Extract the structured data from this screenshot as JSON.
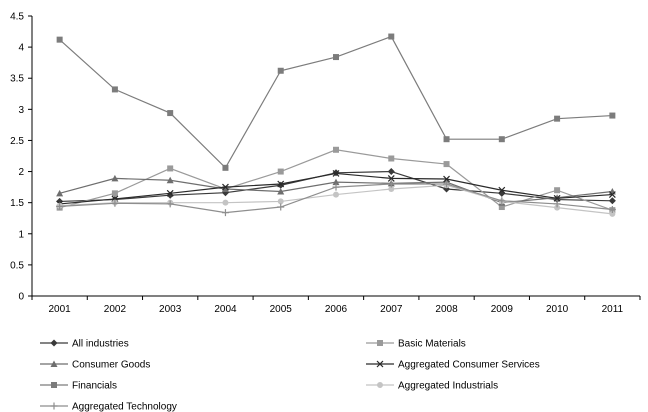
{
  "chart_data": {
    "type": "line",
    "title": "",
    "xlabel": "",
    "ylabel": "",
    "ylim": [
      0,
      4.5
    ],
    "yticks": [
      "0",
      "0.5",
      "1",
      "1.5",
      "2",
      "2.5",
      "3",
      "3.5",
      "4",
      "4.5"
    ],
    "grid": false,
    "legend_position": "bottom",
    "categories": [
      "2001",
      "2002",
      "2003",
      "2004",
      "2005",
      "2006",
      "2007",
      "2008",
      "2009",
      "2010",
      "2011"
    ],
    "series": [
      {
        "name": "All industries",
        "marker": "diamond",
        "color": "#3a3a3a",
        "values": [
          1.52,
          1.55,
          1.62,
          1.66,
          1.78,
          1.98,
          2.0,
          1.72,
          1.65,
          1.55,
          1.53
        ]
      },
      {
        "name": "Basic Materials",
        "marker": "square",
        "color": "#9a9a9a",
        "values": [
          1.42,
          1.65,
          2.05,
          1.72,
          2.0,
          2.35,
          2.21,
          2.12,
          1.43,
          1.7,
          1.38
        ]
      },
      {
        "name": "Consumer Goods",
        "marker": "triangle",
        "color": "#6e6e6e",
        "values": [
          1.65,
          1.89,
          1.86,
          1.72,
          1.68,
          1.83,
          1.81,
          1.83,
          1.5,
          1.58,
          1.68
        ]
      },
      {
        "name": "Aggregated Consumer Services",
        "marker": "x",
        "color": "#2a2a2a",
        "values": [
          1.48,
          1.56,
          1.65,
          1.75,
          1.8,
          1.97,
          1.89,
          1.88,
          1.7,
          1.57,
          1.63
        ]
      },
      {
        "name": "Financials",
        "marker": "square",
        "color": "#7c7c7c",
        "values": [
          4.12,
          3.32,
          2.94,
          2.06,
          3.62,
          3.84,
          4.17,
          2.52,
          2.52,
          2.85,
          2.9
        ]
      },
      {
        "name": "Aggregated Industrials",
        "marker": "circle",
        "color": "#c4c4c4",
        "values": [
          1.45,
          1.5,
          1.5,
          1.5,
          1.52,
          1.63,
          1.72,
          1.78,
          1.52,
          1.42,
          1.32
        ]
      },
      {
        "name": "Aggregated Technology",
        "marker": "plus",
        "color": "#8e8e8e",
        "values": [
          1.44,
          1.49,
          1.48,
          1.34,
          1.43,
          1.75,
          1.8,
          1.8,
          1.53,
          1.48,
          1.39
        ]
      }
    ]
  }
}
